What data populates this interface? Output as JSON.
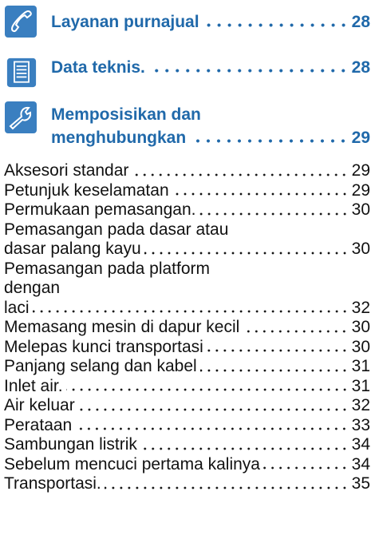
{
  "sections": [
    {
      "lines": [
        "Layanan purnajual"
      ],
      "page": 28
    },
    {
      "lines": [
        "Data teknis."
      ],
      "page": 28
    },
    {
      "lines": [
        "Memposisikan dan",
        "menghubungkan"
      ],
      "page": 29
    }
  ],
  "entries": [
    {
      "lines": [
        "Aksesori standar"
      ],
      "page": 29
    },
    {
      "lines": [
        "Petunjuk keselamatan"
      ],
      "page": 29
    },
    {
      "lines": [
        "Permukaan pemasangan."
      ],
      "page": 30
    },
    {
      "lines": [
        "Pemasangan pada dasar atau",
        "dasar palang kayu"
      ],
      "page": 30
    },
    {
      "lines": [
        "Pemasangan pada platform",
        "dengan",
        "laci"
      ],
      "page": 32
    },
    {
      "lines": [
        "Memasang mesin di dapur kecil"
      ],
      "page": 30
    },
    {
      "lines": [
        "Melepas kunci transportasi"
      ],
      "page": 30
    },
    {
      "lines": [
        "Panjang selang dan kabel"
      ],
      "page": 31
    },
    {
      "lines": [
        "Inlet air."
      ],
      "page": 31
    },
    {
      "lines": [
        "Air keluar"
      ],
      "page": 32
    },
    {
      "lines": [
        "Perataan"
      ],
      "page": 33
    },
    {
      "lines": [
        "Sambungan listrik"
      ],
      "page": 34
    },
    {
      "lines": [
        "Sebelum mencuci pertama kalinya"
      ],
      "page": 34
    },
    {
      "lines": [
        "Transportasi."
      ],
      "page": 35
    }
  ]
}
